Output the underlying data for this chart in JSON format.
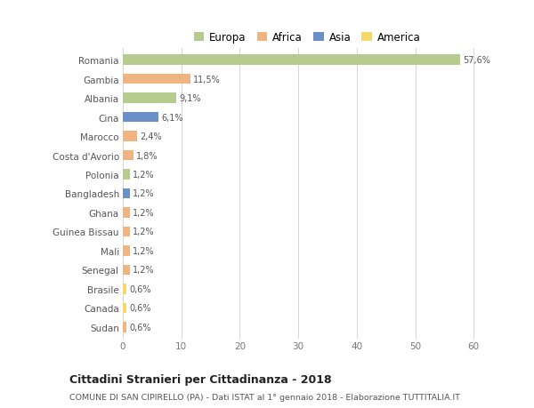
{
  "countries": [
    "Romania",
    "Gambia",
    "Albania",
    "Cina",
    "Marocco",
    "Costa d'Avorio",
    "Polonia",
    "Bangladesh",
    "Ghana",
    "Guinea Bissau",
    "Mali",
    "Senegal",
    "Brasile",
    "Canada",
    "Sudan"
  ],
  "values": [
    57.6,
    11.5,
    9.1,
    6.1,
    2.4,
    1.8,
    1.2,
    1.2,
    1.2,
    1.2,
    1.2,
    1.2,
    0.6,
    0.6,
    0.6
  ],
  "labels": [
    "57,6%",
    "11,5%",
    "9,1%",
    "6,1%",
    "2,4%",
    "1,8%",
    "1,2%",
    "1,2%",
    "1,2%",
    "1,2%",
    "1,2%",
    "1,2%",
    "0,6%",
    "0,6%",
    "0,6%"
  ],
  "colors": [
    "#b5cc8e",
    "#f0b482",
    "#b5cc8e",
    "#6b8fc7",
    "#f0b482",
    "#f0b482",
    "#b5cc8e",
    "#6b8fc7",
    "#f0b482",
    "#f0b482",
    "#f0b482",
    "#f0b482",
    "#f5d76b",
    "#f5d76b",
    "#f0b482"
  ],
  "legend_labels": [
    "Europa",
    "Africa",
    "Asia",
    "America"
  ],
  "legend_colors": [
    "#b5cc8e",
    "#f0b482",
    "#6b8fc7",
    "#f5d76b"
  ],
  "title": "Cittadini Stranieri per Cittadinanza - 2018",
  "subtitle": "COMUNE DI SAN CIPIRELLO (PA) - Dati ISTAT al 1° gennaio 2018 - Elaborazione TUTTITALIA.IT",
  "xlabel_values": [
    0,
    10,
    20,
    30,
    40,
    50,
    60
  ],
  "xlim": [
    0,
    63
  ],
  "bg_color": "#ffffff",
  "grid_color": "#d5d5d5"
}
